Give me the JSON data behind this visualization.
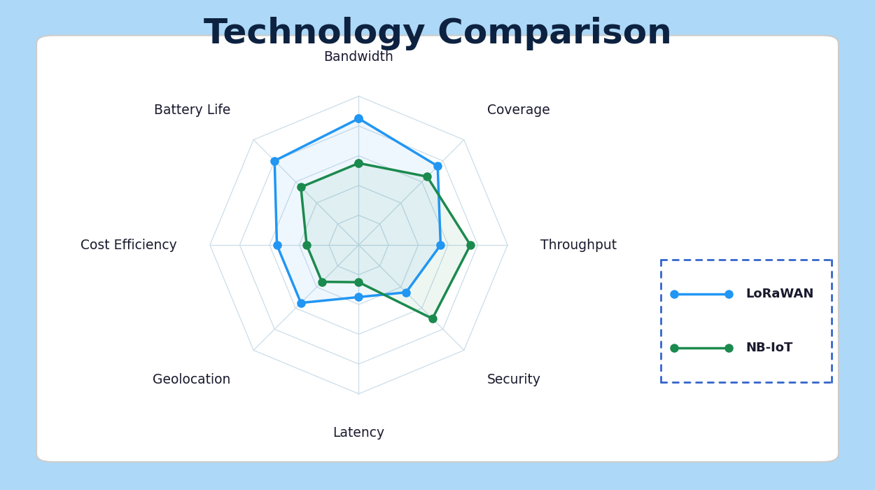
{
  "title": "Technology Comparison",
  "categories": [
    "Bandwidth",
    "Coverage",
    "Throughput",
    "Security",
    "Latency",
    "Geolocation",
    "Cost Efficiency",
    "Battery Life"
  ],
  "lorawan_values": [
    8.5,
    7.5,
    5.5,
    4.5,
    3.5,
    5.5,
    5.5,
    8.0
  ],
  "nbiot_values": [
    5.5,
    6.5,
    7.5,
    7.0,
    2.5,
    3.5,
    3.5,
    5.5
  ],
  "lorawan_color": "#2196F3",
  "nbiot_color": "#1B8A4E",
  "bg_outer": "#ADD8F7",
  "bg_panel": "#FFFFFF",
  "grid_color": "#CCDDE8",
  "title_color": "#0D2240",
  "label_color": "#1A1A2E",
  "max_val": 10,
  "num_levels": 5,
  "legend_border_color": "#3366CC",
  "title_fontsize": 36,
  "label_fontsize": 13.5
}
